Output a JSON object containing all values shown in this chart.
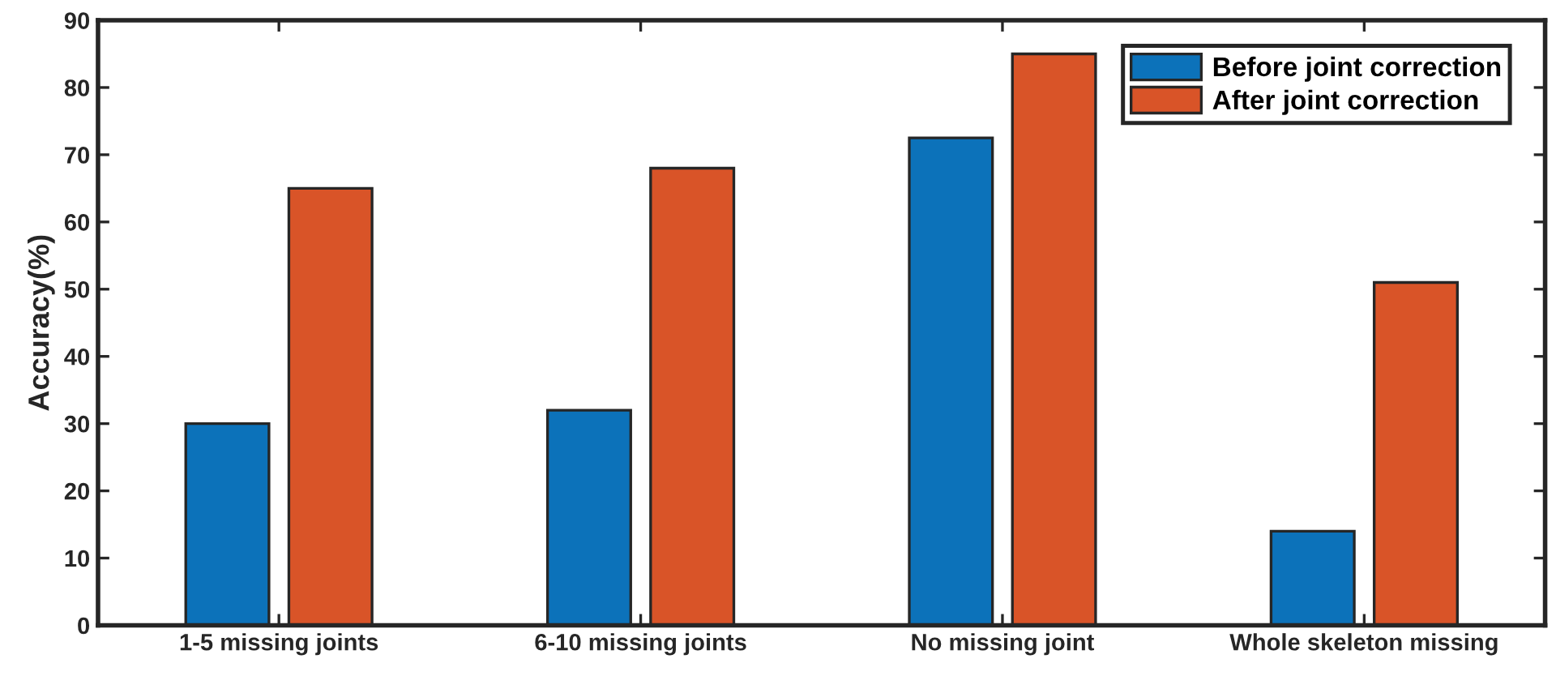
{
  "chart_data": {
    "type": "bar",
    "ylabel": "Accuracy(%)",
    "categories": [
      "1-5 missing joints",
      "6-10 missing joints",
      "No missing joint",
      "Whole skeleton missing"
    ],
    "series": [
      {
        "name": "Before joint correction",
        "color": "#0c72ba",
        "values": [
          30,
          32,
          72.5,
          14
        ]
      },
      {
        "name": "After joint correction",
        "color": "#d95428",
        "values": [
          65,
          68,
          85,
          51
        ]
      }
    ],
    "ylim": [
      0,
      90
    ],
    "yticks": [
      0,
      10,
      20,
      30,
      40,
      50,
      60,
      70,
      80,
      90
    ],
    "grid": false,
    "legend": "top right"
  }
}
